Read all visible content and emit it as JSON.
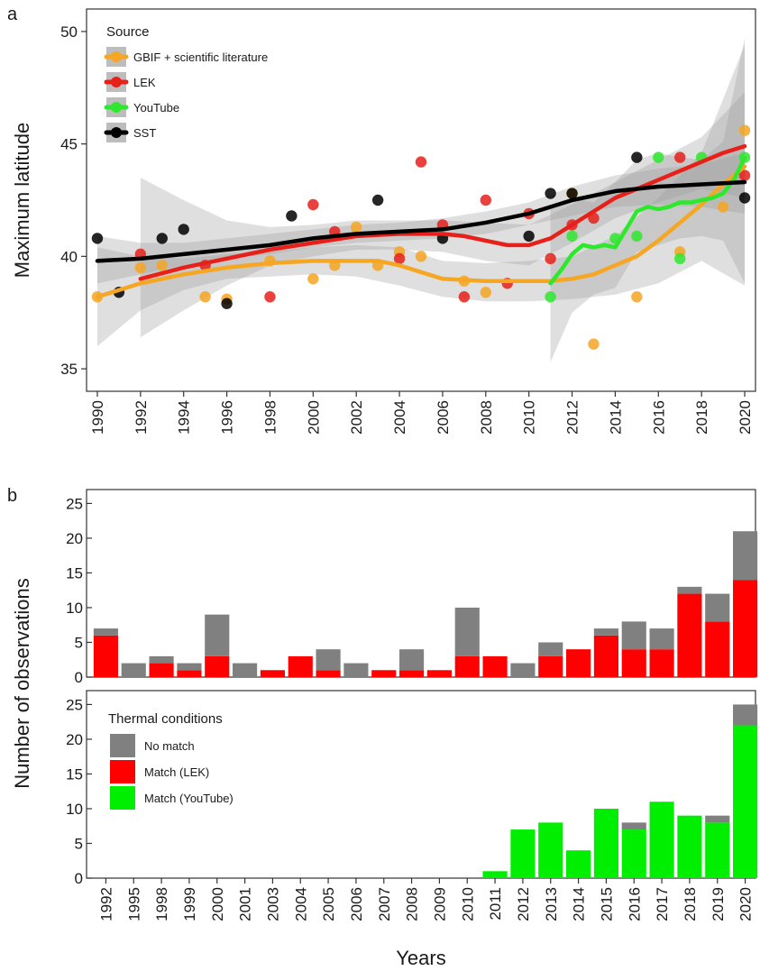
{
  "panel_a": {
    "letter": "a",
    "legend": {
      "title": "Source",
      "entries": [
        {
          "label": "GBIF + scientific literature",
          "color": "#f5a623"
        },
        {
          "label": "LEK",
          "color": "#e8201a"
        },
        {
          "label": "YouTube",
          "color": "#2ee82e"
        },
        {
          "label": "SST",
          "color": "#000000"
        }
      ]
    }
  },
  "panel_b": {
    "letter": "b",
    "legend": {
      "title": "Thermal conditions",
      "entries": [
        {
          "label": "No match",
          "color": "#808080"
        },
        {
          "label": "Match (LEK)",
          "color": "#ff0000"
        },
        {
          "label": "Match (YouTube)",
          "color": "#00ee00"
        }
      ]
    }
  },
  "chart_data": [
    {
      "type": "scatter",
      "panel": "a",
      "ylabel": "Maximum latitude",
      "xlim": [
        1989.5,
        2020.5
      ],
      "ylim": [
        34,
        51
      ],
      "xticks": [
        1990,
        1992,
        1994,
        1996,
        1998,
        2000,
        2002,
        2004,
        2006,
        2008,
        2010,
        2012,
        2014,
        2016,
        2018,
        2020
      ],
      "yticks": [
        35,
        40,
        45,
        50
      ],
      "series": [
        {
          "name": "GBIF + scientific literature",
          "color": "#f5a623",
          "points": [
            [
              1990,
              38.2
            ],
            [
              1992,
              39.5
            ],
            [
              1993,
              39.6
            ],
            [
              1995,
              38.2
            ],
            [
              1996,
              38.1
            ],
            [
              1998,
              39.8
            ],
            [
              2000,
              39.0
            ],
            [
              2001,
              39.6
            ],
            [
              2002,
              41.3
            ],
            [
              2003,
              39.6
            ],
            [
              2004,
              40.2
            ],
            [
              2005,
              40.0
            ],
            [
              2007,
              38.9
            ],
            [
              2008,
              38.4
            ],
            [
              2012,
              42.8
            ],
            [
              2013,
              36.1
            ],
            [
              2015,
              38.2
            ],
            [
              2017,
              40.2
            ],
            [
              2019,
              42.2
            ],
            [
              2020,
              45.6
            ]
          ],
          "smooth": [
            [
              1990,
              38.2
            ],
            [
              1992,
              38.8
            ],
            [
              1994,
              39.2
            ],
            [
              1996,
              39.5
            ],
            [
              1998,
              39.7
            ],
            [
              2000,
              39.8
            ],
            [
              2002,
              39.8
            ],
            [
              2003,
              39.8
            ],
            [
              2004,
              39.6
            ],
            [
              2005,
              39.3
            ],
            [
              2006,
              39.0
            ],
            [
              2008,
              38.9
            ],
            [
              2010,
              38.9
            ],
            [
              2011,
              38.9
            ],
            [
              2012,
              39.0
            ],
            [
              2013,
              39.2
            ],
            [
              2014,
              39.6
            ],
            [
              2015,
              40.0
            ],
            [
              2016,
              40.7
            ],
            [
              2017,
              41.5
            ],
            [
              2018,
              42.3
            ],
            [
              2019,
              43.2
            ],
            [
              2020,
              44.0
            ]
          ],
          "band": [
            [
              1990,
              36.0,
              40.4
            ],
            [
              1992,
              37.6,
              40.0
            ],
            [
              1994,
              38.5,
              39.9
            ],
            [
              1996,
              39.0,
              40.1
            ],
            [
              1998,
              39.1,
              40.2
            ],
            [
              2000,
              39.2,
              40.4
            ],
            [
              2002,
              39.1,
              40.5
            ],
            [
              2004,
              38.7,
              40.4
            ],
            [
              2006,
              38.2,
              39.8
            ],
            [
              2008,
              38.0,
              39.7
            ],
            [
              2010,
              38.0,
              39.8
            ],
            [
              2012,
              38.1,
              40.0
            ],
            [
              2014,
              38.3,
              40.9
            ],
            [
              2016,
              38.8,
              42.6
            ],
            [
              2018,
              39.8,
              44.6
            ],
            [
              2020,
              38.7,
              49.4
            ]
          ]
        },
        {
          "name": "LEK",
          "color": "#e8201a",
          "points": [
            [
              1992,
              40.1
            ],
            [
              1995,
              39.6
            ],
            [
              1998,
              38.2
            ],
            [
              2000,
              42.3
            ],
            [
              2001,
              41.1
            ],
            [
              2004,
              39.9
            ],
            [
              2005,
              44.2
            ],
            [
              2006,
              41.4
            ],
            [
              2007,
              38.2
            ],
            [
              2008,
              42.5
            ],
            [
              2009,
              38.8
            ],
            [
              2010,
              41.9
            ],
            [
              2011,
              39.9
            ],
            [
              2012,
              41.4
            ],
            [
              2013,
              41.7
            ],
            [
              2017,
              44.4
            ],
            [
              2020,
              43.6
            ]
          ],
          "smooth": [
            [
              1992,
              39.0
            ],
            [
              1994,
              39.5
            ],
            [
              1996,
              39.9
            ],
            [
              1998,
              40.3
            ],
            [
              2000,
              40.6
            ],
            [
              2002,
              40.9
            ],
            [
              2004,
              41.0
            ],
            [
              2006,
              41.0
            ],
            [
              2007,
              40.9
            ],
            [
              2008,
              40.7
            ],
            [
              2009,
              40.5
            ],
            [
              2010,
              40.5
            ],
            [
              2011,
              40.8
            ],
            [
              2012,
              41.4
            ],
            [
              2013,
              42.0
            ],
            [
              2014,
              42.6
            ],
            [
              2015,
              43.0
            ],
            [
              2016,
              43.4
            ],
            [
              2017,
              43.8
            ],
            [
              2018,
              44.2
            ],
            [
              2019,
              44.6
            ],
            [
              2020,
              44.9
            ]
          ],
          "band": [
            [
              1992,
              36.4,
              43.5
            ],
            [
              1994,
              37.6,
              42.5
            ],
            [
              1996,
              38.7,
              41.6
            ],
            [
              1998,
              39.6,
              41.3
            ],
            [
              2000,
              40.0,
              41.4
            ],
            [
              2002,
              40.3,
              41.6
            ],
            [
              2004,
              40.3,
              41.6
            ],
            [
              2006,
              40.2,
              41.6
            ],
            [
              2008,
              39.8,
              41.5
            ],
            [
              2010,
              39.6,
              41.4
            ],
            [
              2012,
              40.6,
              42.3
            ],
            [
              2014,
              41.7,
              43.3
            ],
            [
              2016,
              42.4,
              44.3
            ],
            [
              2018,
              43.0,
              45.3
            ],
            [
              2020,
              42.6,
              47.3
            ]
          ]
        },
        {
          "name": "YouTube",
          "color": "#2ee82e",
          "points": [
            [
              2011,
              38.2
            ],
            [
              2012,
              40.9
            ],
            [
              2014,
              40.8
            ],
            [
              2015,
              40.9
            ],
            [
              2016,
              44.4
            ],
            [
              2017,
              39.9
            ],
            [
              2018,
              44.4
            ],
            [
              2020,
              44.4
            ]
          ],
          "smooth": [
            [
              2011.0,
              38.8
            ],
            [
              2011.5,
              39.4
            ],
            [
              2012.0,
              40.1
            ],
            [
              2012.5,
              40.5
            ],
            [
              2013.0,
              40.4
            ],
            [
              2013.5,
              40.5
            ],
            [
              2014.0,
              40.4
            ],
            [
              2014.5,
              41.2
            ],
            [
              2015.0,
              42.0
            ],
            [
              2015.5,
              42.2
            ],
            [
              2016.0,
              42.1
            ],
            [
              2016.5,
              42.2
            ],
            [
              2017.0,
              42.4
            ],
            [
              2017.5,
              42.4
            ],
            [
              2018.0,
              42.5
            ],
            [
              2018.5,
              42.6
            ],
            [
              2019.0,
              42.8
            ],
            [
              2019.5,
              43.4
            ],
            [
              2020.0,
              44.4
            ]
          ],
          "band": [
            [
              2011,
              35.3,
              42.2
            ],
            [
              2012,
              37.5,
              42.6
            ],
            [
              2013,
              38.3,
              42.4
            ],
            [
              2014,
              38.6,
              43.3
            ],
            [
              2015,
              40.2,
              44.3
            ],
            [
              2016,
              40.5,
              44.6
            ],
            [
              2017,
              40.8,
              44.4
            ],
            [
              2018,
              40.9,
              44.3
            ],
            [
              2019,
              40.7,
              45.1
            ],
            [
              2020,
              38.8,
              49.7
            ]
          ]
        },
        {
          "name": "SST",
          "color": "#000000",
          "points": [
            [
              1990,
              40.8
            ],
            [
              1991,
              38.4
            ],
            [
              1993,
              40.8
            ],
            [
              1994,
              41.2
            ],
            [
              1996,
              37.9
            ],
            [
              1999,
              41.8
            ],
            [
              2003,
              42.5
            ],
            [
              2006,
              40.8
            ],
            [
              2010,
              40.9
            ],
            [
              2011,
              42.8
            ],
            [
              2012,
              42.8
            ],
            [
              2015,
              44.4
            ],
            [
              2020,
              42.6
            ]
          ],
          "smooth": [
            [
              1990,
              39.8
            ],
            [
              1992,
              39.9
            ],
            [
              1994,
              40.1
            ],
            [
              1996,
              40.3
            ],
            [
              1998,
              40.5
            ],
            [
              2000,
              40.8
            ],
            [
              2002,
              41.0
            ],
            [
              2004,
              41.1
            ],
            [
              2006,
              41.2
            ],
            [
              2008,
              41.5
            ],
            [
              2010,
              41.9
            ],
            [
              2012,
              42.5
            ],
            [
              2014,
              42.9
            ],
            [
              2016,
              43.1
            ],
            [
              2018,
              43.2
            ],
            [
              2020,
              43.3
            ]
          ],
          "band": [
            [
              1990,
              38.8,
              40.9
            ],
            [
              1992,
              39.2,
              40.6
            ],
            [
              1994,
              39.6,
              40.6
            ],
            [
              1996,
              39.9,
              40.8
            ],
            [
              1998,
              40.1,
              41.0
            ],
            [
              2000,
              40.4,
              41.2
            ],
            [
              2002,
              40.6,
              41.4
            ],
            [
              2004,
              40.7,
              41.5
            ],
            [
              2006,
              40.8,
              41.7
            ],
            [
              2008,
              41.0,
              42.0
            ],
            [
              2010,
              41.4,
              42.4
            ],
            [
              2012,
              41.8,
              43.1
            ],
            [
              2014,
              42.2,
              43.6
            ],
            [
              2016,
              42.3,
              43.9
            ],
            [
              2018,
              42.2,
              44.1
            ],
            [
              2020,
              41.9,
              44.6
            ]
          ]
        }
      ]
    },
    {
      "type": "bar",
      "panel": "b-upper",
      "stacked": true,
      "ylim": [
        0,
        27
      ],
      "yticks": [
        0,
        5,
        10,
        15,
        20,
        25
      ],
      "categories": [
        "1992",
        "1995",
        "1998",
        "1999",
        "2000",
        "2001",
        "2003",
        "2004",
        "2005",
        "2006",
        "2007",
        "2008",
        "2009",
        "2010",
        "2011",
        "2012",
        "2013",
        "2014",
        "2015",
        "2016",
        "2017",
        "2018",
        "2019",
        "2020"
      ],
      "series": [
        {
          "name": "Match (LEK)",
          "color": "#ff0000",
          "values": [
            6,
            0,
            2,
            1,
            3,
            0,
            1,
            3,
            1,
            0,
            1,
            1,
            1,
            3,
            3,
            0,
            3,
            4,
            6,
            4,
            4,
            12,
            8,
            14
          ]
        },
        {
          "name": "No match",
          "color": "#808080",
          "values": [
            1,
            2,
            1,
            1,
            6,
            2,
            0,
            0,
            3,
            2,
            0,
            3,
            0,
            7,
            0,
            2,
            2,
            0,
            1,
            4,
            3,
            1,
            4,
            7
          ]
        }
      ]
    },
    {
      "type": "bar",
      "panel": "b-lower",
      "stacked": true,
      "ylim": [
        0,
        27
      ],
      "yticks": [
        0,
        5,
        10,
        15,
        20,
        25
      ],
      "ylabel": "Number of observations",
      "xlabel": "Years",
      "categories": [
        "1992",
        "1995",
        "1998",
        "1999",
        "2000",
        "2001",
        "2003",
        "2004",
        "2005",
        "2006",
        "2007",
        "2008",
        "2009",
        "2010",
        "2011",
        "2012",
        "2013",
        "2014",
        "2015",
        "2016",
        "2017",
        "2018",
        "2019",
        "2020"
      ],
      "series": [
        {
          "name": "Match (YouTube)",
          "color": "#00ee00",
          "values": [
            0,
            0,
            0,
            0,
            0,
            0,
            0,
            0,
            0,
            0,
            0,
            0,
            0,
            0,
            1,
            7,
            8,
            4,
            10,
            7,
            11,
            9,
            8,
            22
          ]
        },
        {
          "name": "No match",
          "color": "#808080",
          "values": [
            0,
            0,
            0,
            0,
            0,
            0,
            0,
            0,
            0,
            0,
            0,
            0,
            0,
            0,
            0,
            0,
            0,
            0,
            0,
            1,
            0,
            0,
            1,
            3
          ]
        }
      ]
    }
  ]
}
